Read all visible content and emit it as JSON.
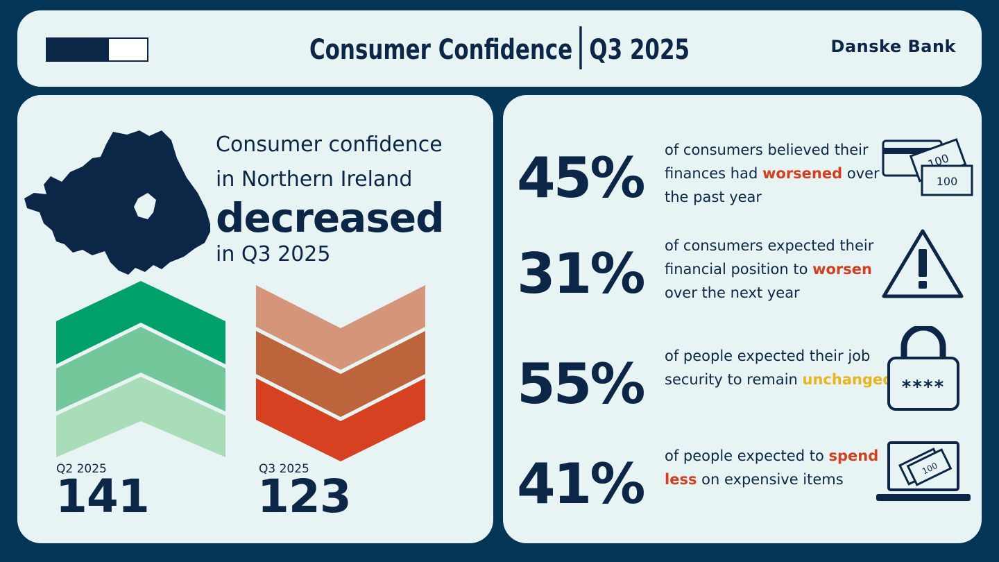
{
  "header": {
    "title_left": "Consumer Confidence",
    "title_right": "Q3 2025",
    "brand": "Danske Bank",
    "progress_fraction": 0.62
  },
  "left": {
    "headline_line1": "Consumer confidence",
    "headline_line2": "in Northern Ireland",
    "headline_big": "decreased",
    "headline_line3": "in Q3 2025",
    "prev": {
      "label": "Q2 2025",
      "value": "141",
      "colors": [
        "#00a06a",
        "#74c69b",
        "#a9ddb9"
      ]
    },
    "curr": {
      "label": "Q3 2025",
      "value": "123",
      "colors": [
        "#d4957a",
        "#bd643d",
        "#d64121"
      ]
    }
  },
  "stats": [
    {
      "pct": "45%",
      "pre": "of consumers believed their finances had",
      "highlight": "worsened",
      "post": "over the past year",
      "highlight_color": "red",
      "icon": "money-card-icon"
    },
    {
      "pct": "31%",
      "pre": "of consumers expected their financial position to",
      "highlight": "worsen",
      "post": "over the next year",
      "highlight_color": "red",
      "icon": "warning-icon"
    },
    {
      "pct": "55%",
      "pre": "of people expected their job security to remain",
      "highlight": "unchanged",
      "post": "",
      "highlight_color": "yellow",
      "icon": "lock-icon",
      "lock_text": "****"
    },
    {
      "pct": "41%",
      "pre": "of people expected to",
      "highlight": "spend less",
      "post": "on expensive items",
      "highlight_color": "red",
      "icon": "laptop-money-icon"
    }
  ],
  "icon_text": {
    "note": "100"
  },
  "colors": {
    "background": "#053557",
    "panel": "#e8f4f3",
    "navy": "#0b2647",
    "red": "#d14020",
    "yellow": "#e6b520"
  }
}
